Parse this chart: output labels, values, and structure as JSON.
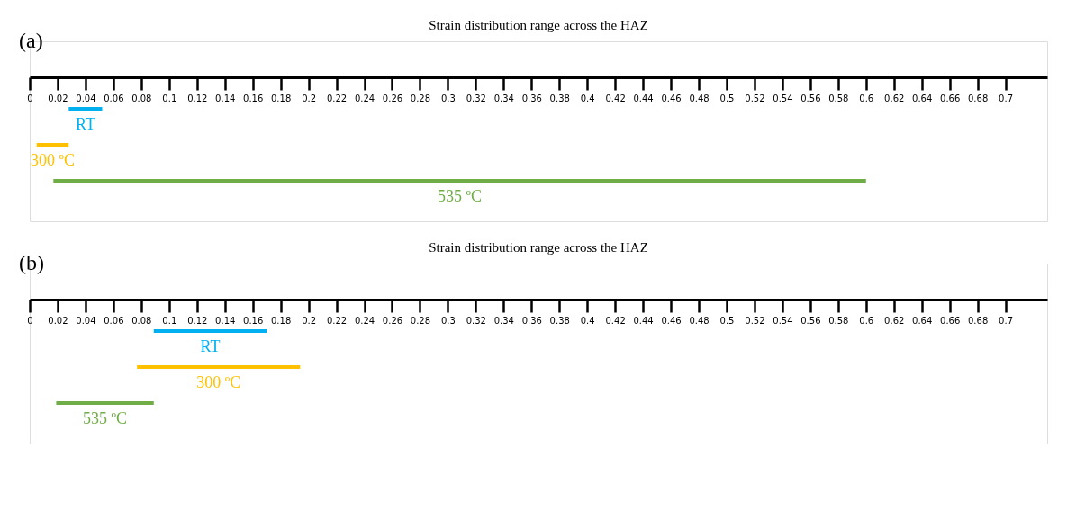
{
  "chart_data": [
    {
      "type": "bar",
      "orientation": "horizontal",
      "title": "Strain distribution range across the HAZ",
      "annotations": [
        "(a)"
      ],
      "categories": [
        "RT",
        "300 ºC",
        "535 ºC"
      ],
      "base": [
        0.028,
        0.005,
        0.017
      ],
      "values": [
        0.024,
        0.023,
        0.583
      ],
      "colors": [
        "#00b0f0",
        "#ffc000",
        "#70ad47"
      ],
      "xlim": [
        0,
        0.73
      ],
      "xticks": [
        0,
        0.02,
        0.04,
        0.06,
        0.08,
        0.1,
        0.12,
        0.14,
        0.16,
        0.18,
        0.2,
        0.22,
        0.24,
        0.26,
        0.28,
        0.3,
        0.32,
        0.34,
        0.36,
        0.38,
        0.4,
        0.42,
        0.44,
        0.46,
        0.48,
        0.5,
        0.52,
        0.54,
        0.56,
        0.58,
        0.6,
        0.62,
        0.64,
        0.66,
        0.68,
        0.7
      ],
      "grid": false
    },
    {
      "type": "bar",
      "orientation": "horizontal",
      "title": "Strain distribution range across the HAZ",
      "annotations": [
        "(b)"
      ],
      "categories": [
        "RT",
        "300 ºC",
        "535 ºC"
      ],
      "base": [
        0.089,
        0.077,
        0.019
      ],
      "values": [
        0.081,
        0.117,
        0.07
      ],
      "colors": [
        "#00b0f0",
        "#ffc000",
        "#70ad47"
      ],
      "xlim": [
        0,
        0.73
      ],
      "xticks": [
        0,
        0.02,
        0.04,
        0.06,
        0.08,
        0.1,
        0.12,
        0.14,
        0.16,
        0.18,
        0.2,
        0.22,
        0.24,
        0.26,
        0.28,
        0.3,
        0.32,
        0.34,
        0.36,
        0.38,
        0.4,
        0.42,
        0.44,
        0.46,
        0.48,
        0.5,
        0.52,
        0.54,
        0.56,
        0.58,
        0.6,
        0.62,
        0.64,
        0.66,
        0.68,
        0.7
      ],
      "grid": false
    }
  ]
}
